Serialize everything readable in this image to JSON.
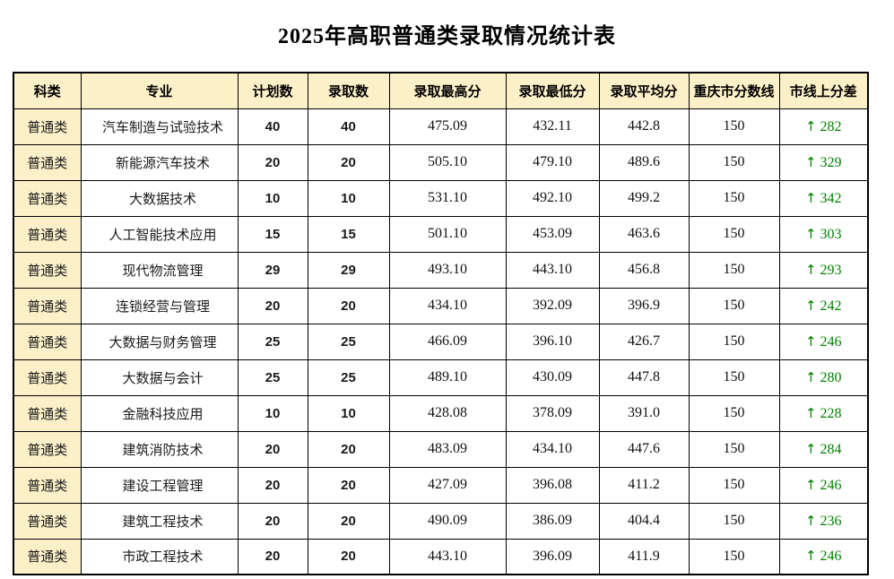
{
  "title": "2025年高职普通类录取情况统计表",
  "colors": {
    "header_background": "#FCF0C8",
    "border": "#000000",
    "diff_green": "#008000",
    "text": "#1a1a1a",
    "page_background": "#ffffff"
  },
  "icons": {
    "up_arrow": "↑"
  },
  "chart_data": {
    "type": "table",
    "title": "2025年高职普通类录取情况统计表",
    "columns": [
      "科类",
      "专业",
      "计划数",
      "录取数",
      "录取最高分",
      "录取最低分",
      "录取平均分",
      "重庆市分数线",
      "市线上分差"
    ],
    "rows": [
      [
        "普通类",
        "汽车制造与试验技术",
        "40",
        "40",
        "475.09",
        "432.11",
        "442.8",
        "150",
        "282"
      ],
      [
        "普通类",
        "新能源汽车技术",
        "20",
        "20",
        "505.10",
        "479.10",
        "489.6",
        "150",
        "329"
      ],
      [
        "普通类",
        "大数据技术",
        "10",
        "10",
        "531.10",
        "492.10",
        "499.2",
        "150",
        "342"
      ],
      [
        "普通类",
        "人工智能技术应用",
        "15",
        "15",
        "501.10",
        "453.09",
        "463.6",
        "150",
        "303"
      ],
      [
        "普通类",
        "现代物流管理",
        "29",
        "29",
        "493.10",
        "443.10",
        "456.8",
        "150",
        "293"
      ],
      [
        "普通类",
        "连锁经营与管理",
        "20",
        "20",
        "434.10",
        "392.09",
        "396.9",
        "150",
        "242"
      ],
      [
        "普通类",
        "大数据与财务管理",
        "25",
        "25",
        "466.09",
        "396.10",
        "426.7",
        "150",
        "246"
      ],
      [
        "普通类",
        "大数据与会计",
        "25",
        "25",
        "489.10",
        "430.09",
        "447.8",
        "150",
        "280"
      ],
      [
        "普通类",
        "金融科技应用",
        "10",
        "10",
        "428.08",
        "378.09",
        "391.0",
        "150",
        "228"
      ],
      [
        "普通类",
        "建筑消防技术",
        "20",
        "20",
        "483.09",
        "434.10",
        "447.6",
        "150",
        "284"
      ],
      [
        "普通类",
        "建设工程管理",
        "20",
        "20",
        "427.09",
        "396.08",
        "411.2",
        "150",
        "246"
      ],
      [
        "普通类",
        "建筑工程技术",
        "20",
        "20",
        "490.09",
        "386.09",
        "404.4",
        "150",
        "236"
      ],
      [
        "普通类",
        "市政工程技术",
        "20",
        "20",
        "443.10",
        "396.09",
        "411.9",
        "150",
        "246"
      ]
    ],
    "notes": {
      "diff_column_style": "green up-arrow prefix",
      "grid": true,
      "header_fill": "#FCF0C8",
      "first_column_fill": "#FCF0C8"
    }
  }
}
